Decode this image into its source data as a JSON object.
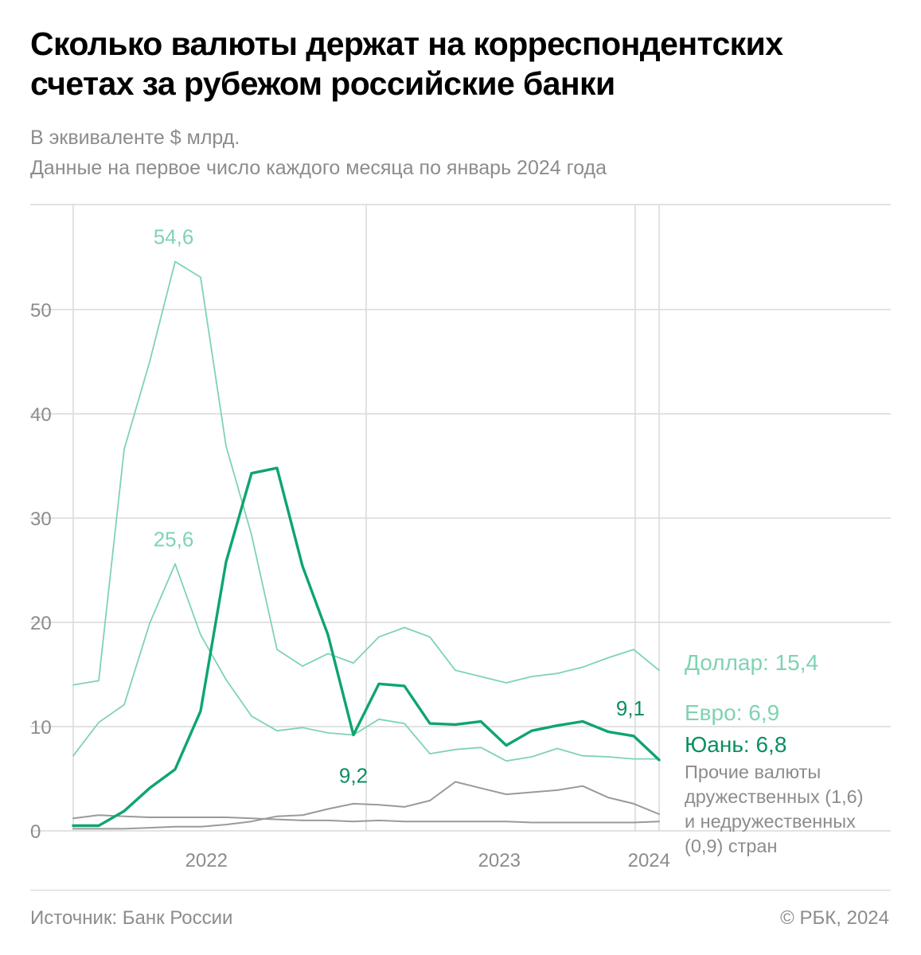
{
  "header": {
    "title_line1": "Сколько валюты держат на корреспондентских",
    "title_line2": "счетах за рубежом российские банки",
    "subtitle_line1": "В эквиваленте $ млрд.",
    "subtitle_line2": "Данные на первое число каждого месяца по январь 2024 года"
  },
  "footer": {
    "source": "Источник: Банк России",
    "copyright": "© РБК, 2024"
  },
  "colors": {
    "dollar": "#7fd3b2",
    "euro": "#7fd3b2",
    "yuan": "#0ea56e",
    "yuan_label": "#0b8f5f",
    "other": "#9a9a9a",
    "grid": "#d9d9d9",
    "axis_text": "#8c8c8c"
  },
  "chart_data": {
    "type": "line",
    "title": "Сколько валюты держат на корреспондентских счетах за рубежом российские банки",
    "ylabel": "В эквиваленте $ млрд.",
    "ylim": [
      0,
      58
    ],
    "yticks": [
      0,
      10,
      20,
      30,
      40,
      50
    ],
    "xlim": [
      0,
      22
    ],
    "x_year_ticks": [
      {
        "x": 5,
        "label": "2022"
      },
      {
        "x": 16,
        "label": "2023"
      },
      {
        "x": 22,
        "label": "2024"
      }
    ],
    "x_year_gridlines": [
      0,
      11,
      21.1
    ],
    "series": [
      {
        "key": "dollar",
        "name": "Доллар",
        "final_label": "Доллар: 15,4",
        "values": [
          14.0,
          14.4,
          36.6,
          45.0,
          54.6,
          53.1,
          36.9,
          28.4,
          17.4,
          15.8,
          17.0,
          16.1,
          18.6,
          19.5,
          18.6,
          15.4,
          14.8,
          14.2,
          14.8,
          15.1,
          15.7,
          16.6,
          17.4,
          15.4
        ],
        "annotations": [
          {
            "index": 4,
            "text": "54,6"
          }
        ]
      },
      {
        "key": "euro",
        "name": "Евро",
        "final_label": "Евро: 6,9",
        "values": [
          7.2,
          10.4,
          12.1,
          19.9,
          25.6,
          18.8,
          14.5,
          11.0,
          9.6,
          9.9,
          9.4,
          9.2,
          10.7,
          10.3,
          7.4,
          7.8,
          8.0,
          6.7,
          7.1,
          7.9,
          7.2,
          7.1,
          6.9,
          6.9
        ],
        "annotations": [
          {
            "index": 4,
            "text": "25,6"
          }
        ]
      },
      {
        "key": "yuan",
        "name": "Юань",
        "final_label": "Юань: 6,8",
        "values": [
          0.5,
          0.5,
          1.9,
          4.1,
          5.9,
          11.5,
          25.8,
          34.3,
          34.8,
          25.4,
          18.8,
          9.2,
          14.1,
          13.9,
          10.3,
          10.2,
          10.5,
          8.2,
          9.6,
          10.1,
          10.5,
          9.5,
          9.1,
          6.8
        ],
        "annotations": [
          {
            "index": 11,
            "text": "9,2"
          },
          {
            "index": 22,
            "text": "9,1"
          }
        ]
      },
      {
        "key": "friendly",
        "name": "Прочие валюты дружественных стран",
        "values": [
          0.2,
          0.2,
          0.2,
          0.3,
          0.4,
          0.4,
          0.6,
          0.9,
          1.4,
          1.5,
          2.1,
          2.6,
          2.5,
          2.3,
          2.9,
          4.7,
          4.1,
          3.5,
          3.7,
          3.9,
          4.3,
          3.2,
          2.6,
          1.6
        ]
      },
      {
        "key": "unfriendly",
        "name": "Прочие валюты недружественных стран",
        "values": [
          1.2,
          1.5,
          1.4,
          1.3,
          1.3,
          1.3,
          1.3,
          1.2,
          1.1,
          1.0,
          1.0,
          0.9,
          1.0,
          0.9,
          0.9,
          0.9,
          0.9,
          0.9,
          0.8,
          0.8,
          0.8,
          0.8,
          0.8,
          0.9
        ]
      }
    ],
    "other_label_lines": [
      "Прочие валюты",
      "дружественных (1,6)",
      "и недружественных",
      "(0,9) стран"
    ]
  }
}
